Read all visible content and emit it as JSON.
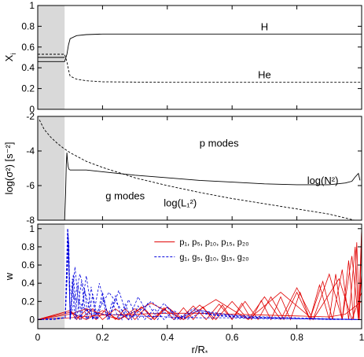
{
  "figure": {
    "core_shading_color": "#d9d9d9"
  },
  "chart_data": [
    {
      "type": "line",
      "ylabel": "X",
      "ylabel_sub": "i",
      "xlim": [
        0,
        1
      ],
      "ylim": [
        0,
        1
      ],
      "yticks": [
        0,
        0.2,
        0.4,
        0.6,
        0.8,
        1
      ],
      "ytick_labels": [
        "0",
        "0.2",
        "0.4",
        "0.6",
        "0.8",
        "1"
      ],
      "shaded_region": [
        0,
        0.083
      ],
      "annotations": [
        {
          "text": "H",
          "x": 0.7,
          "y": 0.76
        },
        {
          "text": "He",
          "x": 0.7,
          "y": 0.3
        }
      ],
      "series": [
        {
          "style": "solid",
          "color": "#000000",
          "x": [
            0,
            0.083,
            0.09,
            0.095,
            0.1,
            0.12,
            0.15,
            0.2,
            0.3,
            0.4,
            0.5,
            0.6,
            0.7,
            0.8,
            0.9,
            0.97,
            1.0
          ],
          "y": [
            0.46,
            0.46,
            0.53,
            0.62,
            0.68,
            0.71,
            0.72,
            0.725,
            0.725,
            0.725,
            0.725,
            0.725,
            0.725,
            0.725,
            0.725,
            0.725,
            0.725
          ]
        },
        {
          "style": "solid",
          "color": "#000000",
          "x": [
            0,
            0.083
          ],
          "y": [
            0.5,
            0.5
          ]
        },
        {
          "style": "dashed",
          "color": "#000000",
          "x": [
            0,
            0.083,
            0.09,
            0.095,
            0.1,
            0.12,
            0.15,
            0.2,
            0.3,
            0.4,
            0.5,
            0.6,
            0.7,
            0.8,
            0.9,
            0.97,
            1.0
          ],
          "y": [
            0.53,
            0.53,
            0.46,
            0.38,
            0.32,
            0.29,
            0.275,
            0.265,
            0.262,
            0.26,
            0.26,
            0.26,
            0.26,
            0.26,
            0.26,
            0.26,
            0.26
          ]
        }
      ]
    },
    {
      "type": "line",
      "ylabel": "log(σ²) [s⁻²]",
      "xlim": [
        0,
        1
      ],
      "ylim": [
        -8,
        -2
      ],
      "yticks": [
        -8,
        -6,
        -4,
        -2
      ],
      "ytick_labels": [
        "-8",
        "-6",
        "-4",
        "-2"
      ],
      "shaded_region": [
        0,
        0.083
      ],
      "annotations": [
        {
          "text": "p modes",
          "x": 0.56,
          "y": -3.75
        },
        {
          "text": "g modes",
          "x": 0.27,
          "y": -6.8
        },
        {
          "text": "log(L₁²)",
          "x": 0.44,
          "y": -7.2
        },
        {
          "text": "log(N²)",
          "x": 0.88,
          "y": -5.9
        }
      ],
      "series": [
        {
          "name": "log(N²)",
          "style": "solid",
          "color": "#000000",
          "x": [
            0.083,
            0.086,
            0.088,
            0.09,
            0.092,
            0.094,
            0.096,
            0.1,
            0.12,
            0.15,
            0.2,
            0.3,
            0.4,
            0.5,
            0.6,
            0.7,
            0.8,
            0.9,
            0.95,
            0.97,
            0.98,
            0.99,
            0.995
          ],
          "y": [
            -8.0,
            -6.5,
            -4.8,
            -4.1,
            -4.6,
            -4.9,
            -5.05,
            -5.1,
            -5.1,
            -5.1,
            -5.2,
            -5.4,
            -5.55,
            -5.7,
            -5.8,
            -5.9,
            -5.95,
            -5.95,
            -5.85,
            -5.75,
            -5.5,
            -5.3,
            -5.7
          ]
        },
        {
          "name": "log(L₁²)",
          "style": "dashed",
          "color": "#000000",
          "x": [
            0.005,
            0.02,
            0.04,
            0.06,
            0.08,
            0.1,
            0.15,
            0.2,
            0.3,
            0.4,
            0.5,
            0.6,
            0.7,
            0.8,
            0.9,
            1.0
          ],
          "y": [
            -2.2,
            -2.75,
            -3.2,
            -3.55,
            -3.85,
            -4.1,
            -4.6,
            -4.95,
            -5.55,
            -6.0,
            -6.4,
            -6.75,
            -7.05,
            -7.35,
            -7.65,
            -8.1
          ]
        }
      ]
    },
    {
      "type": "line",
      "ylabel": "w",
      "xlabel": "r/R",
      "xlabel_sub": "*",
      "xlim": [
        0,
        1
      ],
      "ylim": [
        -0.1,
        1.05
      ],
      "xticks": [
        0,
        0.2,
        0.4,
        0.6,
        0.8,
        1
      ],
      "xtick_labels": [
        "0",
        "0.2",
        "0.4",
        "0.6",
        "0.8",
        "1"
      ],
      "yticks": [
        0,
        0.2,
        0.4,
        0.6,
        0.8,
        1
      ],
      "ytick_labels": [
        "0",
        "0.2",
        "0.4",
        "0.6",
        "0.8",
        "1"
      ],
      "shaded_region": [
        0,
        0.083
      ],
      "legend": [
        {
          "label": "p₁, p₅, p₁₀, p₁₅, p₂₀",
          "style": "solid",
          "color": "#e00000"
        },
        {
          "label": "g₁, g₅, g₁₀, g₁₅, g₂₀",
          "style": "dashed",
          "color": "#0000dd"
        }
      ],
      "legend_position": "upper-middle",
      "series": [
        {
          "mode": "p1",
          "style": "solid",
          "color": "#e00000",
          "x": [
            0,
            0.1,
            0.2,
            0.3,
            0.4,
            0.5,
            0.6,
            0.7,
            0.8,
            0.9,
            0.95,
            1.0
          ],
          "y": [
            0.0,
            0.02,
            0.05,
            0.06,
            0.07,
            0.07,
            0.06,
            0.05,
            0.04,
            0.03,
            0.06,
            0.2
          ]
        },
        {
          "mode": "p5",
          "style": "solid",
          "color": "#e00000",
          "x": [
            0,
            0.1,
            0.15,
            0.25,
            0.35,
            0.45,
            0.55,
            0.65,
            0.75,
            0.85,
            0.93,
            0.97,
            1.0
          ],
          "y": [
            0.0,
            0.06,
            0.12,
            0.0,
            0.18,
            0.0,
            0.22,
            0.0,
            0.3,
            0.0,
            0.45,
            0.0,
            0.3
          ]
        },
        {
          "mode": "p10",
          "style": "solid",
          "color": "#e00000",
          "x": [
            0,
            0.1,
            0.15,
            0.2,
            0.25,
            0.3,
            0.35,
            0.4,
            0.45,
            0.5,
            0.55,
            0.6,
            0.65,
            0.7,
            0.75,
            0.8,
            0.85,
            0.9,
            0.94,
            0.97,
            0.99,
            1.0
          ],
          "y": [
            0.0,
            0.08,
            0.0,
            0.1,
            0.0,
            0.12,
            0.0,
            0.14,
            0.0,
            0.16,
            0.0,
            0.2,
            0.0,
            0.25,
            0.0,
            0.35,
            0.0,
            0.5,
            0.0,
            0.7,
            0.0,
            0.5
          ]
        },
        {
          "mode": "p15",
          "style": "solid",
          "color": "#e00000",
          "x": [
            0,
            0.1,
            0.13,
            0.17,
            0.2,
            0.24,
            0.28,
            0.32,
            0.36,
            0.4,
            0.44,
            0.48,
            0.52,
            0.56,
            0.6,
            0.64,
            0.68,
            0.72,
            0.76,
            0.8,
            0.84,
            0.88,
            0.91,
            0.94,
            0.96,
            0.98,
            0.99,
            1.0
          ],
          "y": [
            0.0,
            0.1,
            0.0,
            0.12,
            0.0,
            0.12,
            0.0,
            0.14,
            0.0,
            0.14,
            0.0,
            0.15,
            0.0,
            0.17,
            0.0,
            0.2,
            0.0,
            0.25,
            0.0,
            0.3,
            0.0,
            0.42,
            0.0,
            0.55,
            0.0,
            0.8,
            0.0,
            1.0
          ]
        },
        {
          "mode": "p20",
          "style": "solid",
          "color": "#e00000",
          "x": [
            0,
            0.1,
            0.12,
            0.15,
            0.18,
            0.21,
            0.24,
            0.27,
            0.3,
            0.33,
            0.36,
            0.39,
            0.42,
            0.45,
            0.48,
            0.51,
            0.54,
            0.57,
            0.6,
            0.63,
            0.66,
            0.69,
            0.72,
            0.75,
            0.78,
            0.81,
            0.84,
            0.87,
            0.9,
            0.92,
            0.94,
            0.96,
            0.975,
            0.985,
            0.993,
            1.0
          ],
          "y": [
            0.0,
            0.1,
            0.0,
            0.11,
            0.0,
            0.11,
            0.0,
            0.12,
            0.0,
            0.12,
            0.0,
            0.13,
            0.0,
            0.13,
            0.0,
            0.14,
            0.0,
            0.16,
            0.0,
            0.18,
            0.0,
            0.21,
            0.0,
            0.25,
            0.0,
            0.3,
            0.0,
            0.38,
            0.0,
            0.5,
            0.0,
            0.65,
            0.0,
            0.85,
            0.0,
            1.0
          ]
        },
        {
          "mode": "g1",
          "style": "dashed",
          "color": "#0000dd",
          "x": [
            0,
            0.05,
            0.085,
            0.092,
            0.1,
            0.15,
            0.2,
            0.3,
            0.4,
            0.5,
            0.6,
            0.7,
            0.8,
            0.9,
            1.0
          ],
          "y": [
            0.0,
            0.0,
            0.02,
            1.0,
            0.3,
            0.1,
            0.06,
            0.04,
            0.03,
            0.02,
            0.02,
            0.01,
            0.01,
            0.0,
            0.0
          ]
        },
        {
          "mode": "g5",
          "style": "dashed",
          "color": "#0000dd",
          "x": [
            0,
            0.085,
            0.093,
            0.1,
            0.13,
            0.17,
            0.22,
            0.28,
            0.35,
            0.42,
            0.5,
            0.6,
            0.7,
            0.8,
            0.9,
            1.0
          ],
          "y": [
            0.0,
            0.02,
            1.0,
            0.0,
            0.5,
            0.0,
            0.3,
            0.0,
            0.2,
            0.0,
            0.1,
            0.05,
            0.03,
            0.02,
            0.01,
            0.0
          ]
        },
        {
          "mode": "g10",
          "style": "dashed",
          "color": "#0000dd",
          "x": [
            0,
            0.085,
            0.094,
            0.1,
            0.115,
            0.13,
            0.15,
            0.17,
            0.19,
            0.22,
            0.25,
            0.28,
            0.31,
            0.35,
            0.39,
            0.43,
            0.48,
            0.55,
            0.65,
            0.8,
            1.0
          ],
          "y": [
            0.0,
            0.02,
            0.95,
            0.0,
            0.58,
            0.0,
            0.48,
            0.0,
            0.4,
            0.0,
            0.32,
            0.0,
            0.25,
            0.0,
            0.18,
            0.0,
            0.12,
            0.06,
            0.03,
            0.01,
            0.0
          ]
        },
        {
          "mode": "g15",
          "style": "dashed",
          "color": "#0000dd",
          "x": [
            0,
            0.085,
            0.095,
            0.1,
            0.11,
            0.12,
            0.135,
            0.15,
            0.165,
            0.18,
            0.2,
            0.22,
            0.24,
            0.26,
            0.28,
            0.31,
            0.34,
            0.37,
            0.4,
            0.44,
            0.48,
            0.55,
            0.65,
            0.8,
            1.0
          ],
          "y": [
            0.0,
            0.02,
            0.9,
            0.0,
            0.5,
            0.0,
            0.42,
            0.0,
            0.36,
            0.0,
            0.3,
            0.0,
            0.26,
            0.0,
            0.22,
            0.0,
            0.18,
            0.0,
            0.14,
            0.0,
            0.1,
            0.05,
            0.02,
            0.01,
            0.0
          ]
        },
        {
          "mode": "g20",
          "style": "dashed",
          "color": "#0000dd",
          "x": [
            0,
            0.085,
            0.096,
            0.1,
            0.107,
            0.115,
            0.125,
            0.135,
            0.145,
            0.155,
            0.17,
            0.185,
            0.2,
            0.215,
            0.23,
            0.25,
            0.27,
            0.29,
            0.31,
            0.33,
            0.36,
            0.39,
            0.42,
            0.46,
            0.5,
            0.56,
            0.65,
            0.8,
            1.0
          ],
          "y": [
            0.0,
            0.02,
            0.85,
            0.0,
            0.45,
            0.0,
            0.38,
            0.0,
            0.33,
            0.0,
            0.28,
            0.0,
            0.24,
            0.0,
            0.2,
            0.0,
            0.17,
            0.0,
            0.15,
            0.0,
            0.12,
            0.0,
            0.1,
            0.0,
            0.07,
            0.04,
            0.02,
            0.01,
            0.0
          ]
        }
      ]
    }
  ]
}
